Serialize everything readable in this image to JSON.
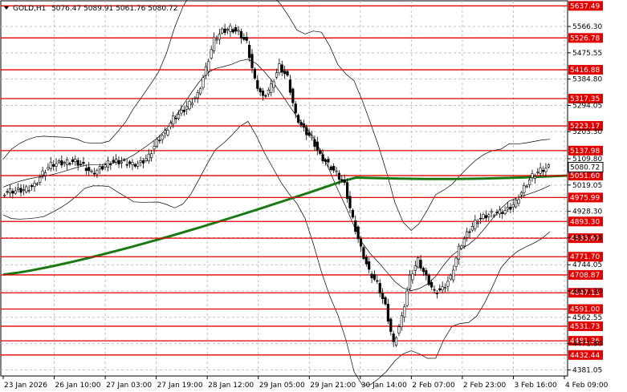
{
  "header": {
    "symbol_text": "GOLD,H1",
    "ohlc_text": "5076.47 5089.91 5061.76 5080.72"
  },
  "chart_data": {
    "type": "candlestick",
    "symbol": "GOLD",
    "timeframe": "H1",
    "grid": true,
    "ylim": [
      4360,
      5655
    ],
    "y_ticks": [
      "5566.30",
      "5475.55",
      "5384.80",
      "5294.05",
      "5203.30",
      "5109.80",
      "5019.05",
      "4928.30",
      "4837.55",
      "4744.05",
      "4653.30",
      "4562.55",
      "4471.80",
      "4381.05"
    ],
    "x_ticks": [
      "23 Jan 2026",
      "26 Jan 10:00",
      "27 Jan 03:00",
      "27 Jan 19:00",
      "28 Jan 12:00",
      "29 Jan 05:00",
      "29 Jan 21:00",
      "30 Jan 14:00",
      "2 Feb 07:00",
      "2 Feb 23:00",
      "3 Feb 16:00",
      "4 Feb 09:00"
    ],
    "current_price": "5080.72",
    "ma_label": "5051.60",
    "levels": [
      "5637.49",
      "5526.78",
      "5416.88",
      "5317.35",
      "5223.17",
      "5137.98",
      "5051.60",
      "4975.99",
      "4893.30",
      "4835.67",
      "4771.70",
      "4708.87",
      "4647.13",
      "4591.00",
      "4531.73",
      "4481.36",
      "4432.44"
    ],
    "close_path": [
      [
        0,
        4990
      ],
      [
        4,
        4998
      ],
      [
        8,
        5000
      ],
      [
        12,
        5005
      ],
      [
        16,
        5018
      ],
      [
        20,
        5060
      ],
      [
        24,
        5090
      ],
      [
        28,
        5095
      ],
      [
        32,
        5098
      ],
      [
        36,
        5100
      ],
      [
        40,
        5085
      ],
      [
        44,
        5060
      ],
      [
        48,
        5075
      ],
      [
        52,
        5095
      ],
      [
        56,
        5100
      ],
      [
        60,
        5098
      ],
      [
        64,
        5090
      ],
      [
        68,
        5095
      ],
      [
        72,
        5118
      ],
      [
        76,
        5170
      ],
      [
        80,
        5200
      ],
      [
        84,
        5250
      ],
      [
        88,
        5270
      ],
      [
        92,
        5300
      ],
      [
        96,
        5330
      ],
      [
        100,
        5420
      ],
      [
        104,
        5520
      ],
      [
        108,
        5550
      ],
      [
        112,
        5560
      ],
      [
        116,
        5545
      ],
      [
        120,
        5510
      ],
      [
        124,
        5380
      ],
      [
        128,
        5320
      ],
      [
        132,
        5360
      ],
      [
        136,
        5430
      ],
      [
        140,
        5390
      ],
      [
        144,
        5260
      ],
      [
        148,
        5210
      ],
      [
        152,
        5180
      ],
      [
        156,
        5120
      ],
      [
        160,
        5090
      ],
      [
        164,
        5060
      ],
      [
        168,
        5020
      ],
      [
        172,
        4900
      ],
      [
        176,
        4800
      ],
      [
        180,
        4720
      ],
      [
        184,
        4680
      ],
      [
        188,
        4600
      ],
      [
        192,
        4470
      ],
      [
        196,
        4560
      ],
      [
        200,
        4700
      ],
      [
        204,
        4760
      ],
      [
        208,
        4700
      ],
      [
        212,
        4650
      ],
      [
        216,
        4660
      ],
      [
        220,
        4700
      ],
      [
        224,
        4800
      ],
      [
        228,
        4850
      ],
      [
        232,
        4890
      ],
      [
        236,
        4910
      ],
      [
        240,
        4920
      ],
      [
        244,
        4925
      ],
      [
        248,
        4935
      ],
      [
        252,
        4960
      ],
      [
        256,
        5010
      ],
      [
        260,
        5050
      ],
      [
        264,
        5070
      ],
      [
        268,
        5080.72
      ]
    ],
    "bands_note": "Bollinger-style envelope drawn around price"
  }
}
